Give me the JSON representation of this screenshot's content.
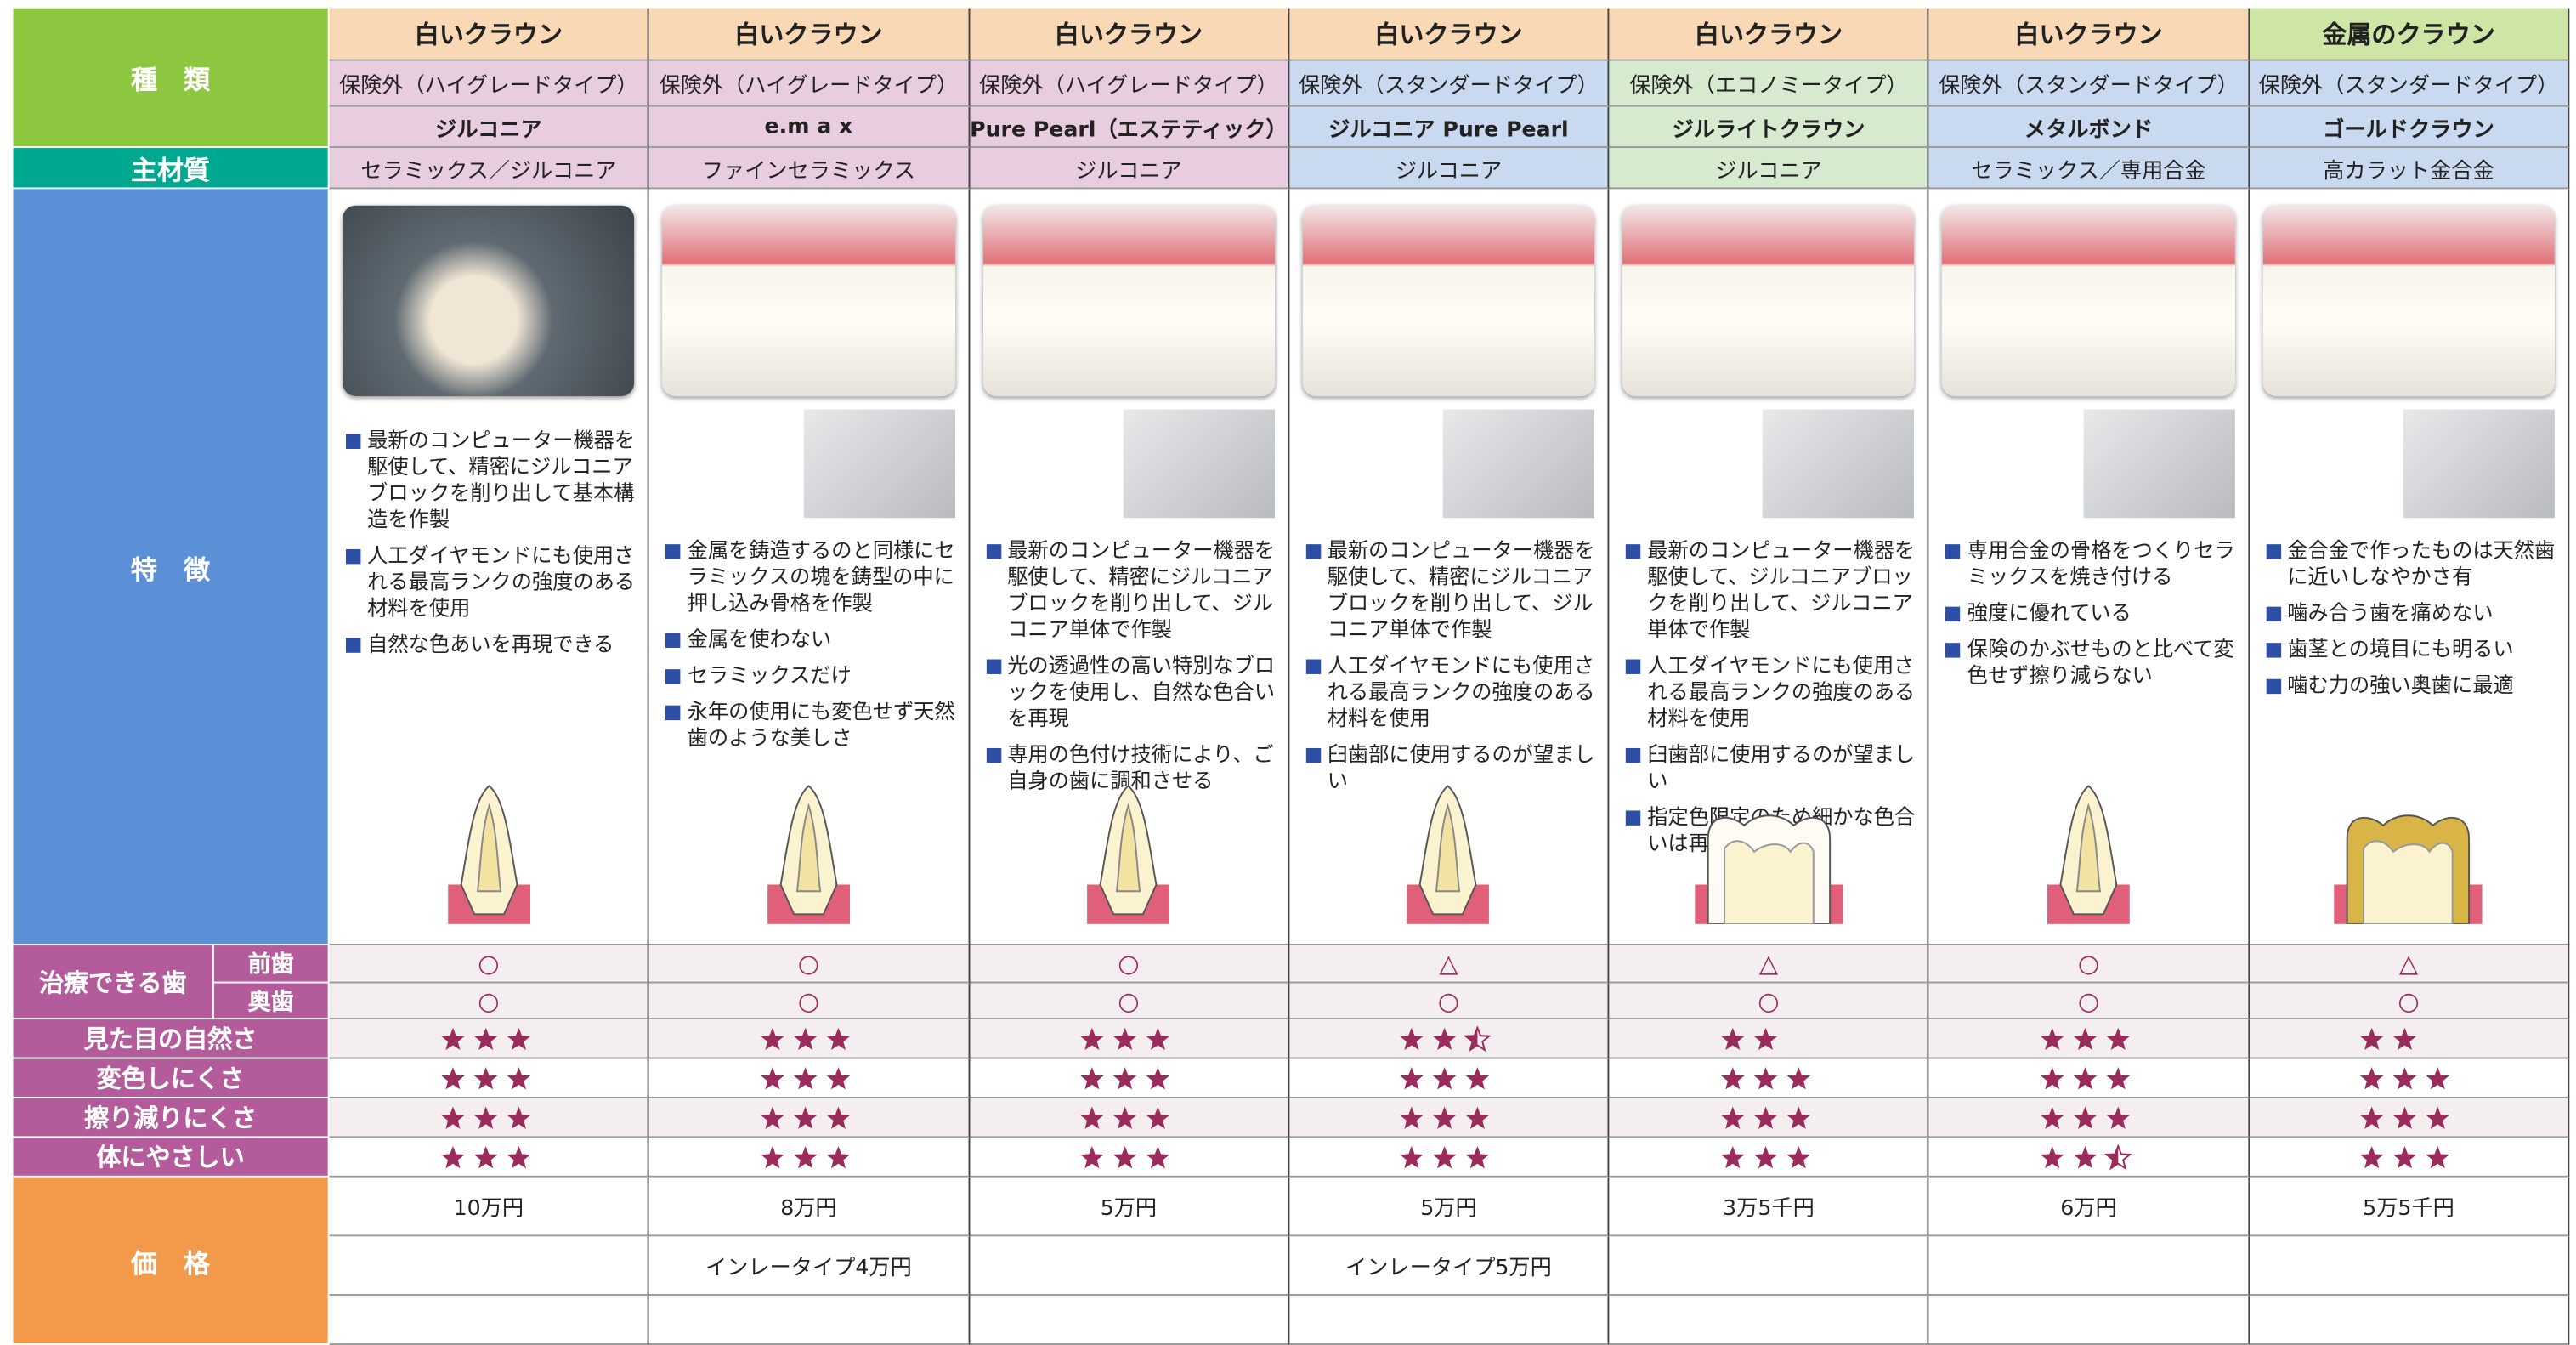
{
  "row_labels": {
    "type": "種　類",
    "material": "主材質",
    "features": "特　徴",
    "treatable": "治療できる歯",
    "front": "前歯",
    "back": "奥歯",
    "natural": "見た目の自然さ",
    "discolor": "変色しにくさ",
    "wear": "擦り減りにくさ",
    "body": "体にやさしい",
    "price": "価　格"
  },
  "columns": [
    {
      "crown": "白いクラウン",
      "insurance": "保険外（ハイグレードタイプ）",
      "name": "ジルコニア",
      "material": "セラミックス／ジルコニア",
      "features": [
        "最新のコンピューター機器を駆使して、精密にジルコニアブロックを削り出して基本構造を作製",
        "人工ダイヤモンドにも使用される最高ランクの強度のある材料を使用",
        "自然な色あいを再現できる"
      ],
      "front": "○",
      "back": "○",
      "natural": 3,
      "discolor": 3,
      "wear": 3,
      "body": 3,
      "price": "10万円"
    },
    {
      "crown": "白いクラウン",
      "insurance": "保険外（ハイグレードタイプ）",
      "name": "e.m a x",
      "material": "ファインセラミックス",
      "features": [
        "金属を鋳造するのと同様にセラミックスの塊を鋳型の中に押し込み骨格を作製",
        "金属を使わない",
        "セラミックスだけ",
        "永年の使用にも変色せず天然歯のような美しさ"
      ],
      "front": "○",
      "back": "○",
      "natural": 3,
      "discolor": 3,
      "wear": 3,
      "body": 3,
      "price": "8万円",
      "price_note": "インレータイプ4万円"
    },
    {
      "crown": "白いクラウン",
      "insurance": "保険外（ハイグレードタイプ）",
      "name": "Pure Pearl（エステティック）",
      "material": "ジルコニア",
      "features": [
        "最新のコンピューター機器を駆使して、精密にジルコニアブロックを削り出して、ジルコニア単体で作製",
        "光の透過性の高い特別なブロックを使用し、自然な色合いを再現",
        "専用の色付け技術により、ご自身の歯に調和させる"
      ],
      "front": "○",
      "back": "○",
      "natural": 3,
      "discolor": 3,
      "wear": 3,
      "body": 3,
      "price": "5万円"
    },
    {
      "crown": "白いクラウン",
      "insurance": "保険外（スタンダードタイプ）",
      "name": "ジルコニア Pure Pearl",
      "material": "ジルコニア",
      "features": [
        "最新のコンピューター機器を駆使して、精密にジルコニアブロックを削り出して、ジルコニア単体で作製",
        "人工ダイヤモンドにも使用される最高ランクの強度のある材料を使用",
        "臼歯部に使用するのが望ましい"
      ],
      "front": "△",
      "back": "○",
      "natural": 2.5,
      "discolor": 3,
      "wear": 3,
      "body": 3,
      "price": "5万円",
      "price_note": "インレータイプ5万円"
    },
    {
      "crown": "白いクラウン",
      "insurance": "保険外（エコノミータイプ）",
      "name": "ジルライトクラウン",
      "material": "ジルコニア",
      "features": [
        "最新のコンピューター機器を駆使して、ジルコニアブロックを削り出して、ジルコニア単体で作製",
        "人工ダイヤモンドにも使用される最高ランクの強度のある材料を使用",
        "臼歯部に使用するのが望ましい",
        "指定色限定のため細かな色合いは再現できません"
      ],
      "front": "△",
      "back": "○",
      "natural": 2,
      "discolor": 3,
      "wear": 3,
      "body": 3,
      "price": "3万5千円"
    },
    {
      "crown": "白いクラウン",
      "insurance": "保険外（スタンダードタイプ）",
      "name": "メタルボンド",
      "material": "セラミックス／専用合金",
      "features": [
        "専用合金の骨格をつくりセラミックスを焼き付ける",
        "強度に優れている",
        "保険のかぶせものと比べて変色せず擦り減らない"
      ],
      "front": "○",
      "back": "○",
      "natural": 3,
      "discolor": 3,
      "wear": 3,
      "body": 2.5,
      "price": "6万円"
    },
    {
      "crown": "金属のクラウン",
      "insurance": "保険外（スタンダードタイプ）",
      "name": "ゴールドクラウン",
      "material": "高カラット金合金",
      "features": [
        "金合金で作ったものは天然歯に近いしなやかさ有",
        "噛み合う歯を痛めない",
        "歯茎との境目にも明るい",
        "噛む力の強い奥歯に最適"
      ],
      "front": "△",
      "back": "○",
      "natural": 2,
      "discolor": 3,
      "wear": 3,
      "body": 3,
      "price": "5万5千円"
    }
  ]
}
